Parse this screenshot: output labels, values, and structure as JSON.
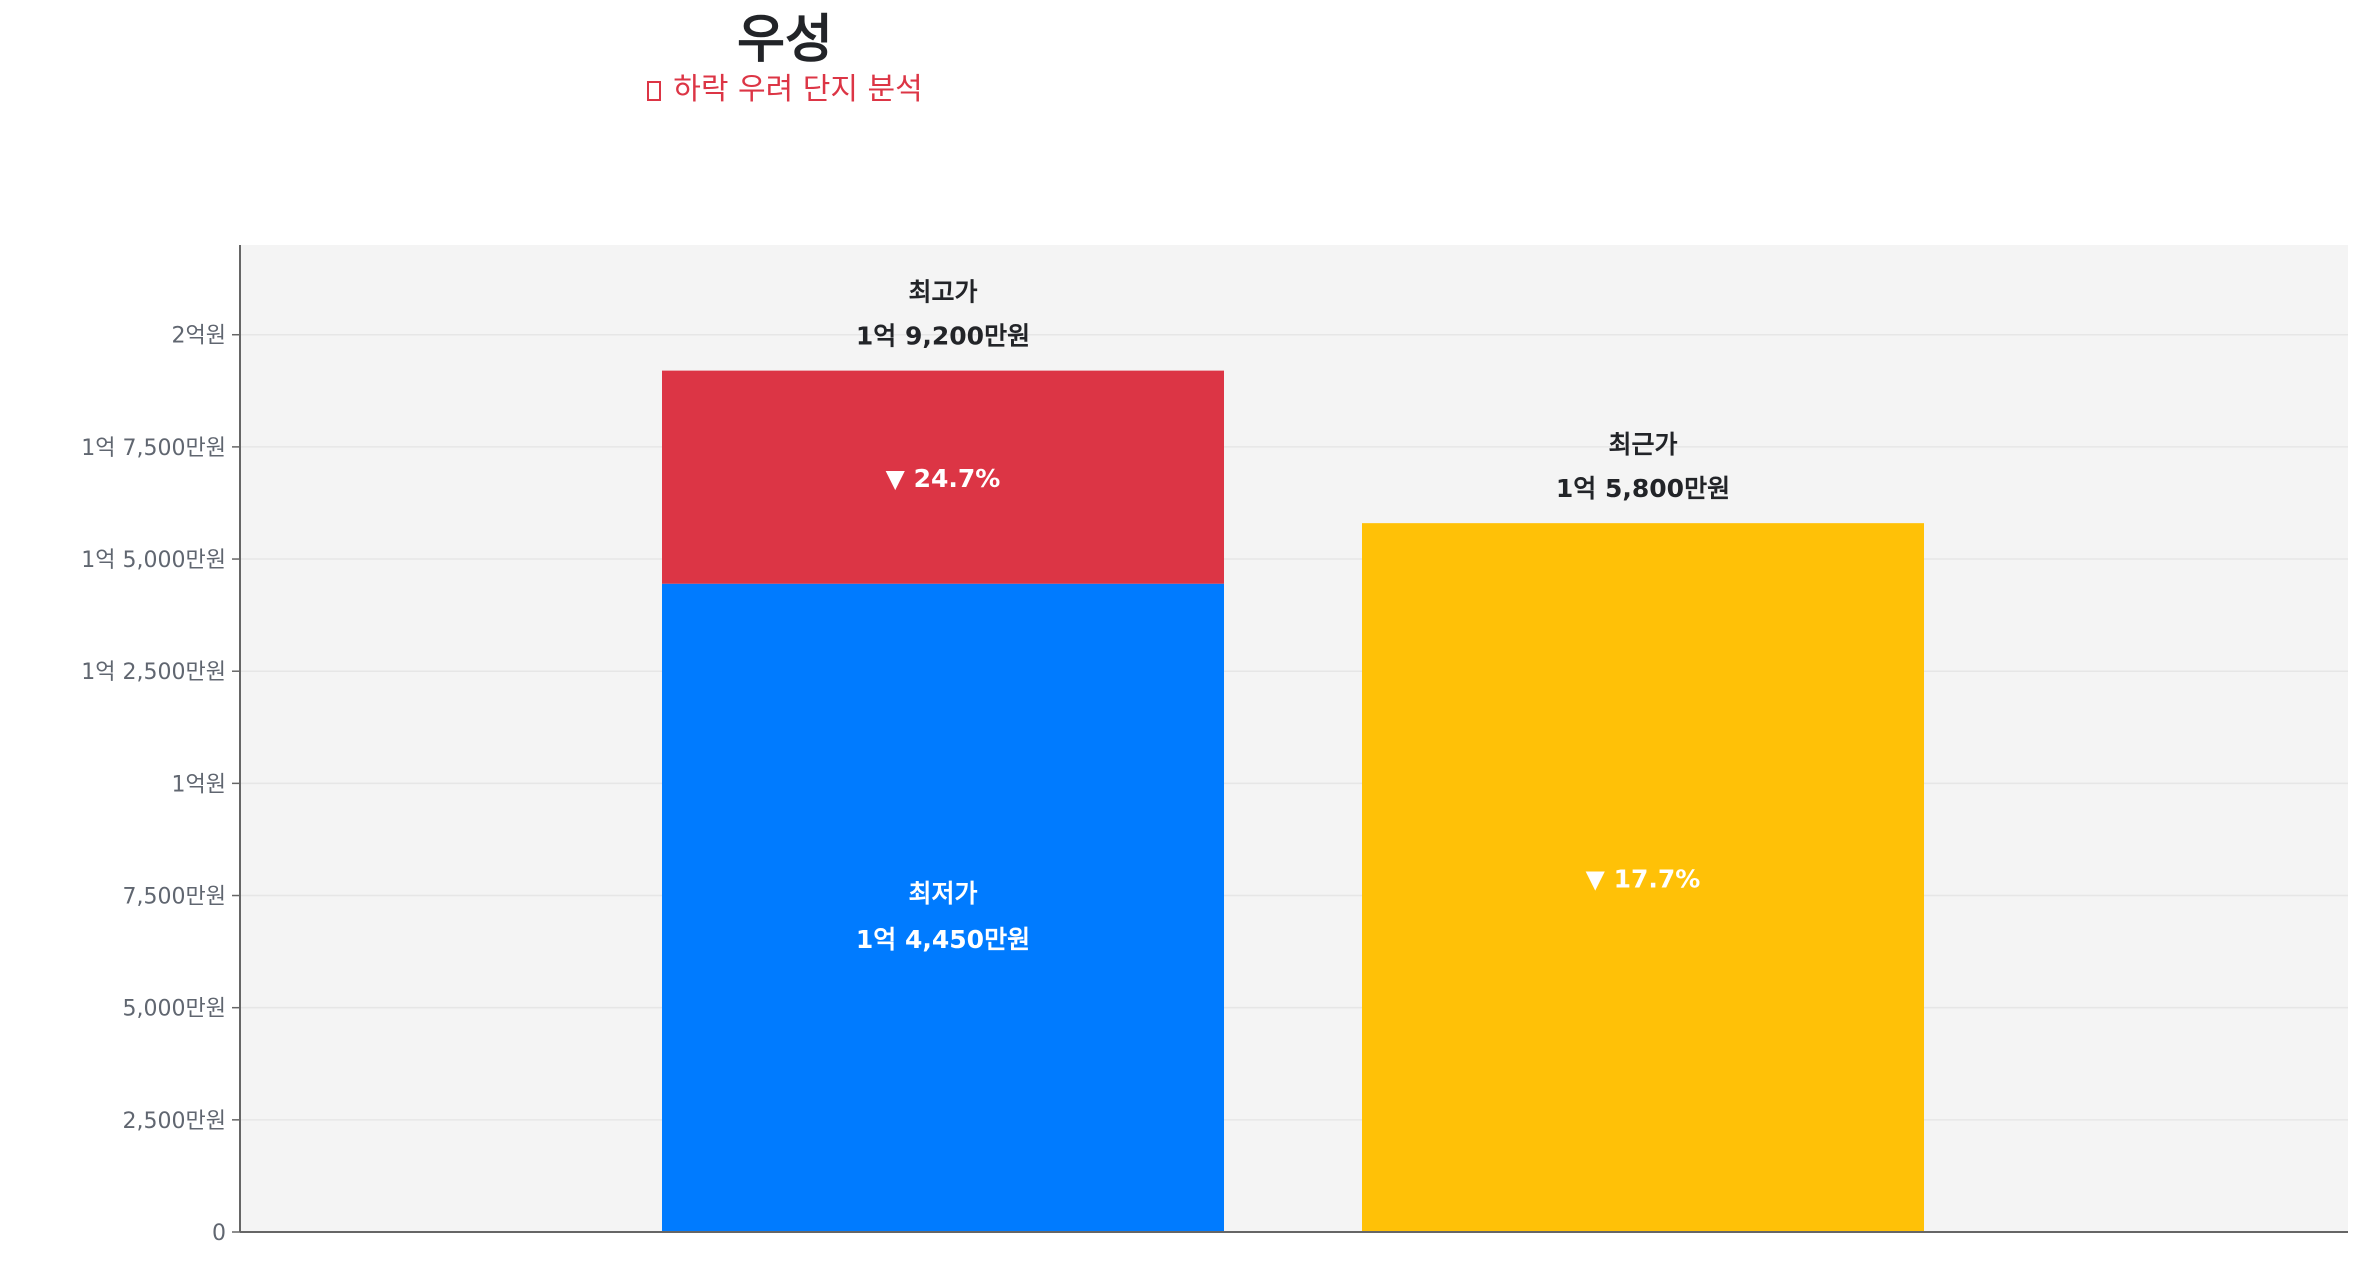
{
  "title": "우성",
  "subtitle": "하락 우려 단지 분석",
  "colors": {
    "low": "#007bff",
    "high": "#dc3545",
    "recent": "#ffc107",
    "plot_bg": "#f4f4f4",
    "grid": "#e6e6e6",
    "axis": "#666666"
  },
  "chart_data": {
    "type": "bar",
    "stacked": true,
    "unit": "만원",
    "ylim": [
      0,
      22000
    ],
    "yticks": [
      {
        "value": 0,
        "label": "0"
      },
      {
        "value": 2500,
        "label": "2,500만원"
      },
      {
        "value": 5000,
        "label": "5,000만원"
      },
      {
        "value": 7500,
        "label": "7,500만원"
      },
      {
        "value": 10000,
        "label": "1억원"
      },
      {
        "value": 12500,
        "label": "1억 2,500만원"
      },
      {
        "value": 15000,
        "label": "1억 5,000만원"
      },
      {
        "value": 17500,
        "label": "1억 7,500만원"
      },
      {
        "value": 20000,
        "label": "2억원"
      }
    ],
    "grid": true,
    "bars": [
      {
        "segments": [
          {
            "name": "최저가",
            "value": 14450,
            "value_label": "1억 4,450만원",
            "color_key": "low"
          },
          {
            "name": "최고가",
            "value": 4750,
            "top_total": 19200,
            "value_label": "1억 9,200만원",
            "change_label": "▼ 24.7%",
            "color_key": "high"
          }
        ]
      },
      {
        "segments": [
          {
            "name": "최근가",
            "value": 15800,
            "value_label": "1억 5,800만원",
            "change_label": "▼ 17.7%",
            "color_key": "recent"
          }
        ]
      }
    ]
  }
}
